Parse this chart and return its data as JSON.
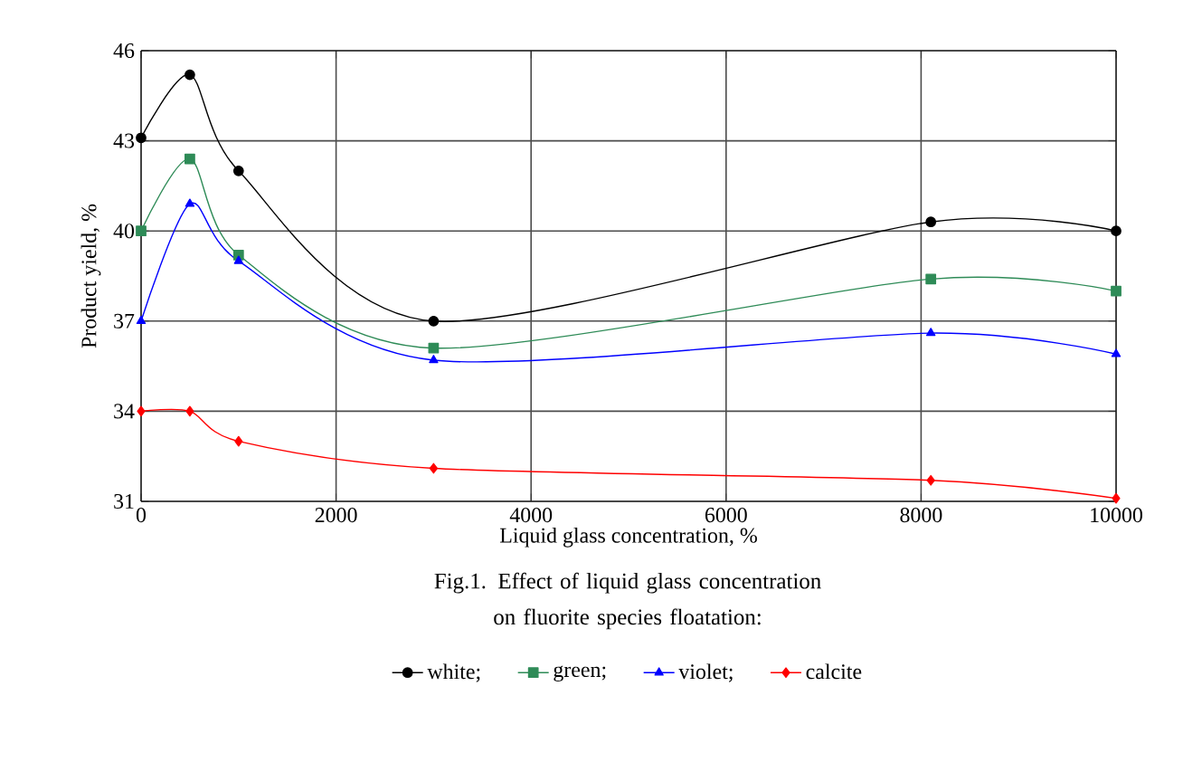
{
  "chart_data": {
    "type": "line",
    "xlabel": "Liquid glass concentration, %",
    "ylabel": "Product yield, %",
    "annotations": [
      "Fig.1. Effect of liquid glass concentration on fluorite species floatation:"
    ],
    "x": [
      0,
      500,
      1000,
      3000,
      8100,
      10000
    ],
    "series": [
      {
        "name": "white;",
        "color": "#000000",
        "marker": "circle",
        "values": [
          43.1,
          45.2,
          42.0,
          37.0,
          40.3,
          40.0
        ]
      },
      {
        "name": "green;",
        "color": "#2e8b57",
        "marker": "square",
        "values": [
          40.0,
          42.4,
          39.2,
          36.1,
          38.4,
          38.0
        ]
      },
      {
        "name": "violet;",
        "color": "#0000ff",
        "marker": "triangle",
        "values": [
          37.0,
          40.9,
          39.0,
          35.7,
          36.6,
          35.9
        ]
      },
      {
        "name": "calcite",
        "color": "#ff0000",
        "marker": "diamond",
        "values": [
          34.0,
          34.0,
          33.0,
          32.1,
          31.7,
          31.1
        ]
      }
    ],
    "xlim": [
      0,
      10000
    ],
    "xticks": [
      0,
      2000,
      4000,
      6000,
      8000,
      10000
    ],
    "ylim": [
      31,
      46
    ],
    "yticks": [
      31,
      34,
      37,
      40,
      43,
      46
    ],
    "grid": true,
    "legend": "bottom"
  }
}
